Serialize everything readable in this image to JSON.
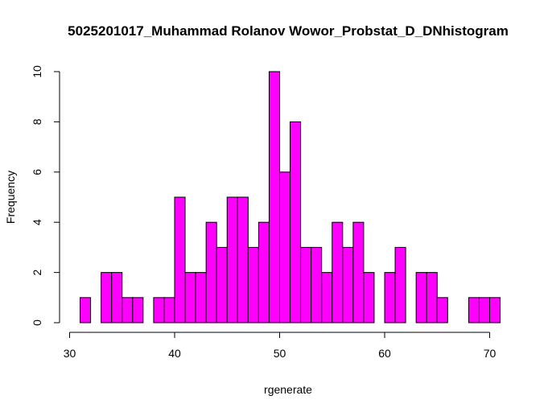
{
  "chart_data": {
    "type": "histogram",
    "title": "5025201017_Muhammad Rolanov Wowor_Probstat_D_DNhistogram",
    "xlabel": "rgenerate",
    "ylabel": "Frequency",
    "bin_width": 1,
    "bins": [
      {
        "start": 31,
        "end": 32,
        "count": 1
      },
      {
        "start": 32,
        "end": 33,
        "count": 0
      },
      {
        "start": 33,
        "end": 34,
        "count": 2
      },
      {
        "start": 34,
        "end": 35,
        "count": 2
      },
      {
        "start": 35,
        "end": 36,
        "count": 1
      },
      {
        "start": 36,
        "end": 37,
        "count": 1
      },
      {
        "start": 37,
        "end": 38,
        "count": 0
      },
      {
        "start": 38,
        "end": 39,
        "count": 1
      },
      {
        "start": 39,
        "end": 40,
        "count": 1
      },
      {
        "start": 40,
        "end": 41,
        "count": 5
      },
      {
        "start": 41,
        "end": 42,
        "count": 2
      },
      {
        "start": 42,
        "end": 43,
        "count": 2
      },
      {
        "start": 43,
        "end": 44,
        "count": 4
      },
      {
        "start": 44,
        "end": 45,
        "count": 3
      },
      {
        "start": 45,
        "end": 46,
        "count": 5
      },
      {
        "start": 46,
        "end": 47,
        "count": 5
      },
      {
        "start": 47,
        "end": 48,
        "count": 3
      },
      {
        "start": 48,
        "end": 49,
        "count": 4
      },
      {
        "start": 49,
        "end": 50,
        "count": 10
      },
      {
        "start": 50,
        "end": 51,
        "count": 6
      },
      {
        "start": 51,
        "end": 52,
        "count": 8
      },
      {
        "start": 52,
        "end": 53,
        "count": 3
      },
      {
        "start": 53,
        "end": 54,
        "count": 3
      },
      {
        "start": 54,
        "end": 55,
        "count": 2
      },
      {
        "start": 55,
        "end": 56,
        "count": 4
      },
      {
        "start": 56,
        "end": 57,
        "count": 3
      },
      {
        "start": 57,
        "end": 58,
        "count": 4
      },
      {
        "start": 58,
        "end": 59,
        "count": 2
      },
      {
        "start": 59,
        "end": 60,
        "count": 0
      },
      {
        "start": 60,
        "end": 61,
        "count": 2
      },
      {
        "start": 61,
        "end": 62,
        "count": 3
      },
      {
        "start": 62,
        "end": 63,
        "count": 0
      },
      {
        "start": 63,
        "end": 64,
        "count": 2
      },
      {
        "start": 64,
        "end": 65,
        "count": 2
      },
      {
        "start": 65,
        "end": 66,
        "count": 1
      },
      {
        "start": 66,
        "end": 67,
        "count": 0
      },
      {
        "start": 67,
        "end": 68,
        "count": 0
      },
      {
        "start": 68,
        "end": 69,
        "count": 1
      },
      {
        "start": 69,
        "end": 70,
        "count": 1
      },
      {
        "start": 70,
        "end": 71,
        "count": 1
      }
    ],
    "xlim": [
      30,
      71
    ],
    "ylim": [
      0,
      10
    ],
    "x_ticks": [
      "30",
      "40",
      "50",
      "60",
      "70"
    ],
    "y_ticks": [
      "0",
      "2",
      "4",
      "6",
      "8",
      "10"
    ],
    "bar_color": "#ff00ff",
    "edge_color": "#000000",
    "grid": false,
    "legend": "none"
  }
}
